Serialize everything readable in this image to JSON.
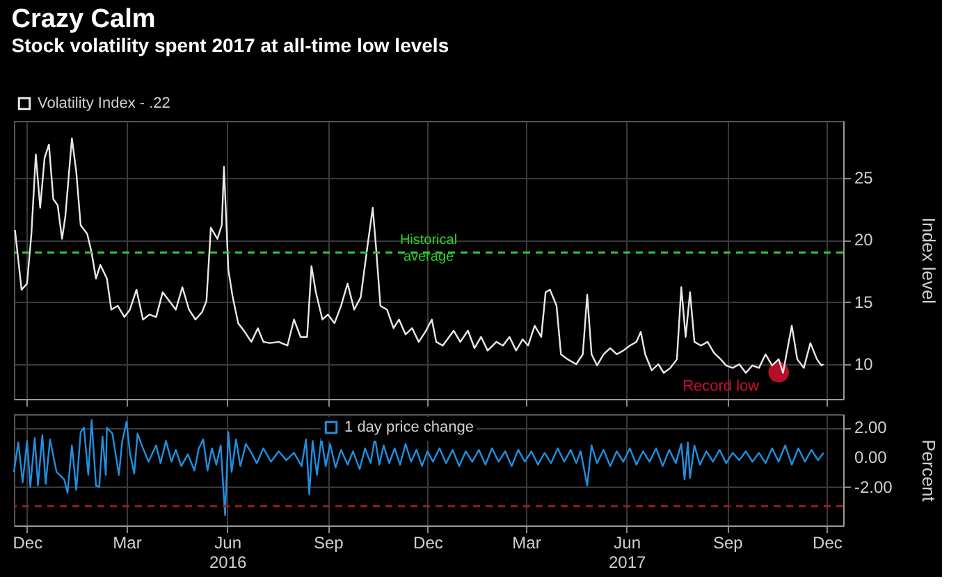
{
  "chart_data": [
    {
      "type": "line",
      "title": "Crazy Calm",
      "subtitle": "Stock volatility spent 2017 at all-time low levels",
      "ylabel": "Index level",
      "legend": "top left",
      "grid": true,
      "tick_labels": "y",
      "xlim": [
        "2015-11-19",
        "2017-12-16"
      ],
      "ylim": [
        7.2,
        29.6
      ],
      "yticks": [
        10,
        15,
        20,
        25
      ],
      "xticks": [
        {
          "value": "2015-12-01",
          "label": null
        },
        {
          "value": "2016-03-01",
          "label": null
        },
        {
          "value": "2016-06-01",
          "label": null
        },
        {
          "value": "2016-09-01",
          "label": null
        },
        {
          "value": "2016-12-01",
          "label": null
        },
        {
          "value": "2017-03-01",
          "label": null
        },
        {
          "value": "2017-06-01",
          "label": null
        },
        {
          "value": "2017-09-01",
          "label": null
        },
        {
          "value": "2017-12-01",
          "label": null
        }
      ],
      "x": [
        "2015-11-20",
        "2015-11-26",
        "2015-12-01",
        "2015-12-05",
        "2015-12-09",
        "2015-12-13",
        "2015-12-17",
        "2015-12-21",
        "2015-12-25",
        "2015-12-29",
        "2016-01-02",
        "2016-01-05",
        "2016-01-11",
        "2016-01-15",
        "2016-01-19",
        "2016-01-25",
        "2016-01-29",
        "2016-02-02",
        "2016-02-06",
        "2016-02-12",
        "2016-02-16",
        "2016-02-22",
        "2016-02-28",
        "2016-03-04",
        "2016-03-10",
        "2016-03-16",
        "2016-03-22",
        "2016-03-28",
        "2016-04-03",
        "2016-04-09",
        "2016-04-15",
        "2016-04-21",
        "2016-04-27",
        "2016-05-03",
        "2016-05-09",
        "2016-05-13",
        "2016-05-17",
        "2016-05-23",
        "2016-05-27",
        "2016-05-29",
        "2016-06-02",
        "2016-06-06",
        "2016-06-11",
        "2016-06-17",
        "2016-06-23",
        "2016-06-29",
        "2016-07-04",
        "2016-07-10",
        "2016-07-18",
        "2016-07-26",
        "2016-08-01",
        "2016-08-07",
        "2016-08-13",
        "2016-08-17",
        "2016-08-21",
        "2016-08-27",
        "2016-09-01",
        "2016-09-07",
        "2016-09-13",
        "2016-09-19",
        "2016-09-25",
        "2016-10-01",
        "2016-10-07",
        "2016-10-12",
        "2016-10-15",
        "2016-10-19",
        "2016-10-25",
        "2016-10-31",
        "2016-11-05",
        "2016-11-11",
        "2016-11-17",
        "2016-11-23",
        "2016-11-29",
        "2016-12-05",
        "2016-12-09",
        "2016-12-15",
        "2016-12-25",
        "2016-12-31",
        "2017-01-07",
        "2017-01-13",
        "2017-01-19",
        "2017-01-25",
        "2017-02-02",
        "2017-02-08",
        "2017-02-14",
        "2017-02-20",
        "2017-02-26",
        "2017-03-03",
        "2017-03-09",
        "2017-03-15",
        "2017-03-19",
        "2017-03-23",
        "2017-03-29",
        "2017-04-02",
        "2017-04-08",
        "2017-04-16",
        "2017-04-22",
        "2017-04-26",
        "2017-04-30",
        "2017-05-05",
        "2017-05-11",
        "2017-05-17",
        "2017-05-23",
        "2017-05-29",
        "2017-06-04",
        "2017-06-10",
        "2017-06-14",
        "2017-06-18",
        "2017-06-24",
        "2017-06-30",
        "2017-07-05",
        "2017-07-11",
        "2017-07-17",
        "2017-07-21",
        "2017-07-25",
        "2017-07-29",
        "2017-08-02",
        "2017-08-08",
        "2017-08-14",
        "2017-08-20",
        "2017-08-26",
        "2017-08-31",
        "2017-09-06",
        "2017-09-12",
        "2017-09-18",
        "2017-09-24",
        "2017-09-30",
        "2017-10-06",
        "2017-10-12",
        "2017-10-18",
        "2017-10-22",
        "2017-10-30",
        "2017-11-04",
        "2017-11-10",
        "2017-11-16",
        "2017-11-22",
        "2017-11-26",
        "2017-11-28"
      ],
      "series": [
        {
          "name": "Volatility Index - .22",
          "color": "#e8e8e8",
          "values": [
            20.8,
            16.0,
            16.5,
            20.5,
            26.9,
            22.6,
            26.6,
            27.7,
            23.3,
            22.8,
            20.1,
            21.9,
            28.2,
            25.5,
            21.2,
            20.5,
            19.0,
            16.9,
            18.0,
            16.9,
            14.4,
            14.7,
            13.8,
            14.4,
            16.0,
            13.6,
            14.0,
            13.8,
            15.8,
            15.1,
            14.4,
            16.2,
            14.4,
            13.6,
            14.2,
            15.1,
            21.0,
            20.1,
            21.2,
            25.9,
            17.6,
            15.4,
            13.3,
            12.6,
            11.8,
            12.9,
            11.8,
            11.7,
            11.8,
            11.5,
            13.6,
            12.2,
            12.2,
            17.9,
            15.8,
            13.6,
            14.0,
            13.3,
            14.7,
            16.5,
            14.4,
            15.4,
            19.4,
            22.6,
            19.4,
            14.7,
            14.4,
            12.9,
            13.6,
            12.4,
            12.9,
            11.8,
            12.6,
            13.6,
            11.8,
            11.5,
            12.7,
            11.8,
            12.7,
            11.3,
            12.2,
            11.1,
            11.8,
            11.5,
            12.2,
            11.1,
            12.0,
            11.5,
            13.1,
            12.2,
            15.8,
            16.0,
            14.7,
            10.8,
            10.4,
            10.0,
            10.8,
            15.6,
            10.8,
            9.9,
            10.8,
            11.3,
            10.8,
            11.1,
            11.5,
            11.8,
            12.6,
            10.8,
            9.5,
            10.0,
            9.3,
            9.7,
            10.4,
            16.2,
            12.2,
            15.8,
            11.8,
            11.5,
            11.8,
            10.9,
            10.4,
            9.9,
            9.7,
            10.0,
            9.3,
            9.9,
            9.7,
            10.8,
            9.9,
            10.4,
            9.3,
            13.1,
            10.4,
            9.7,
            11.7,
            10.4,
            9.9,
            10.0
          ]
        }
      ],
      "ref_lines": [
        {
          "axis": "y",
          "value": 19,
          "label": "Historical\naverage",
          "color": "#2ecc2e",
          "line_style": "dashed"
        }
      ],
      "annotations": [
        {
          "text": "Record low",
          "x": "2017-10-18",
          "y": 9.35
        }
      ]
    },
    {
      "type": "line",
      "ylabel": "Percent",
      "legend": "top",
      "grid": true,
      "xlim": [
        "2015-11-19",
        "2017-12-16"
      ],
      "ylim": [
        -4.6,
        2.9
      ],
      "yticks": [
        {
          "value": 2,
          "label": "2.00"
        },
        {
          "value": 0,
          "label": "0.00"
        },
        {
          "value": -2,
          "label": "-2.00"
        }
      ],
      "xticks": [
        {
          "value": "2015-12-01",
          "label": "Dec"
        },
        {
          "value": "2016-03-01",
          "label": "Mar"
        },
        {
          "value": "2016-06-01",
          "label": "Jun\n2016"
        },
        {
          "value": "2016-09-01",
          "label": "Sep"
        },
        {
          "value": "2016-12-01",
          "label": "Dec"
        },
        {
          "value": "2017-03-01",
          "label": "Mar"
        },
        {
          "value": "2017-06-01",
          "label": "Jun\n2017"
        },
        {
          "value": "2017-09-01",
          "label": "Sep"
        },
        {
          "value": "2017-12-01",
          "label": "Dec"
        }
      ],
      "x": [
        "2015-11-19",
        "2015-11-23",
        "2015-11-27",
        "2015-12-01",
        "2015-12-04",
        "2015-12-08",
        "2015-12-11",
        "2015-12-15",
        "2015-12-18",
        "2015-12-22",
        "2015-12-28",
        "2016-01-04",
        "2016-01-07",
        "2016-01-11",
        "2016-01-15",
        "2016-01-19",
        "2016-01-22",
        "2016-01-26",
        "2016-01-29",
        "2016-02-02",
        "2016-02-05",
        "2016-02-08",
        "2016-02-11",
        "2016-02-12",
        "2016-02-17",
        "2016-02-23",
        "2016-02-26",
        "2016-03-01",
        "2016-03-04",
        "2016-03-08",
        "2016-03-11",
        "2016-03-16",
        "2016-03-21",
        "2016-03-28",
        "2016-04-01",
        "2016-04-06",
        "2016-04-11",
        "2016-04-15",
        "2016-04-20",
        "2016-04-26",
        "2016-05-02",
        "2016-05-06",
        "2016-05-10",
        "2016-05-14",
        "2016-05-18",
        "2016-05-22",
        "2016-05-26",
        "2016-05-30",
        "2016-06-02",
        "2016-06-05",
        "2016-06-09",
        "2016-06-13",
        "2016-06-18",
        "2016-06-23",
        "2016-06-28",
        "2016-07-04",
        "2016-07-11",
        "2016-07-18",
        "2016-07-25",
        "2016-08-01",
        "2016-08-08",
        "2016-08-12",
        "2016-08-15",
        "2016-08-18",
        "2016-08-22",
        "2016-08-26",
        "2016-08-30",
        "2016-09-03",
        "2016-09-08",
        "2016-09-13",
        "2016-09-19",
        "2016-09-24",
        "2016-09-30",
        "2016-10-05",
        "2016-10-10",
        "2016-10-14",
        "2016-10-18",
        "2016-10-22",
        "2016-10-27",
        "2016-11-01",
        "2016-11-06",
        "2016-11-11",
        "2016-11-16",
        "2016-11-21",
        "2016-11-26",
        "2016-12-01",
        "2016-12-06",
        "2016-12-12",
        "2016-12-18",
        "2016-12-24",
        "2016-12-30",
        "2017-01-05",
        "2017-01-11",
        "2017-01-17",
        "2017-01-23",
        "2017-01-29",
        "2017-02-04",
        "2017-02-10",
        "2017-02-16",
        "2017-02-22",
        "2017-02-28",
        "2017-03-06",
        "2017-03-12",
        "2017-03-18",
        "2017-03-24",
        "2017-03-30",
        "2017-04-05",
        "2017-04-11",
        "2017-04-16",
        "2017-04-20",
        "2017-04-26",
        "2017-04-30",
        "2017-05-05",
        "2017-05-11",
        "2017-05-17",
        "2017-05-23",
        "2017-05-29",
        "2017-06-04",
        "2017-06-10",
        "2017-06-16",
        "2017-06-22",
        "2017-06-28",
        "2017-07-04",
        "2017-07-10",
        "2017-07-16",
        "2017-07-21",
        "2017-07-24",
        "2017-07-27",
        "2017-07-29",
        "2017-08-02",
        "2017-08-07",
        "2017-08-13",
        "2017-08-19",
        "2017-08-25",
        "2017-08-31",
        "2017-09-06",
        "2017-09-12",
        "2017-09-18",
        "2017-09-24",
        "2017-09-30",
        "2017-10-06",
        "2017-10-12",
        "2017-10-18",
        "2017-10-24",
        "2017-10-30",
        "2017-11-05",
        "2017-11-11",
        "2017-11-17",
        "2017-11-23",
        "2017-11-28"
      ],
      "series": [
        {
          "name": "1 day price change",
          "color": "#1e90e0",
          "values": [
            -1.0,
            1.0,
            -1.7,
            1.1,
            -2.0,
            1.3,
            -1.9,
            1.5,
            -1.8,
            1.2,
            -1.0,
            -1.5,
            -2.4,
            0.8,
            -2.2,
            1.7,
            2.0,
            -1.2,
            2.5,
            -1.9,
            -2.0,
            1.4,
            -1.2,
            2.0,
            1.6,
            -1.2,
            1.1,
            2.4,
            0.3,
            -1.1,
            1.6,
            0.6,
            -0.3,
            0.8,
            -0.4,
            1.1,
            -0.3,
            0.5,
            -0.6,
            0.2,
            -0.9,
            0.6,
            1.2,
            -0.9,
            0.6,
            -0.5,
            0.8,
            -3.9,
            1.7,
            -1.0,
            1.2,
            -0.6,
            0.9,
            0.3,
            -0.4,
            0.6,
            -0.3,
            0.4,
            -0.2,
            0.3,
            -0.6,
            1.2,
            -2.5,
            1.1,
            -1.2,
            1.3,
            -0.6,
            0.9,
            -0.7,
            0.5,
            -0.5,
            0.4,
            -0.8,
            0.6,
            -0.4,
            1.3,
            -0.5,
            0.8,
            -0.4,
            0.6,
            -0.5,
            0.9,
            -0.3,
            0.5,
            -0.6,
            0.4,
            -0.3,
            0.6,
            -0.4,
            0.5,
            -0.6,
            0.4,
            -0.3,
            0.5,
            -0.5,
            0.6,
            -0.3,
            0.4,
            -0.6,
            0.5,
            -0.3,
            0.4,
            -0.5,
            0.3,
            -0.4,
            0.6,
            -0.3,
            0.5,
            -0.4,
            0.4,
            -1.9,
            0.8,
            -0.4,
            0.5,
            -0.6,
            0.4,
            -0.3,
            0.6,
            -0.5,
            0.4,
            -0.3,
            0.6,
            -0.6,
            0.5,
            -0.4,
            0.9,
            -1.5,
            1.0,
            -1.4,
            0.8,
            -0.5,
            0.4,
            -0.3,
            0.5,
            -0.4,
            0.3,
            -0.2,
            0.4,
            -0.3,
            0.3,
            -0.4,
            0.6,
            -0.3,
            0.8,
            -0.5,
            0.6,
            -0.3,
            0.5,
            -0.2,
            0.3
          ]
        }
      ],
      "ref_lines": [
        {
          "axis": "y",
          "value": -3.3,
          "color": "#a01c1c",
          "line_style": "dashed"
        }
      ]
    }
  ]
}
